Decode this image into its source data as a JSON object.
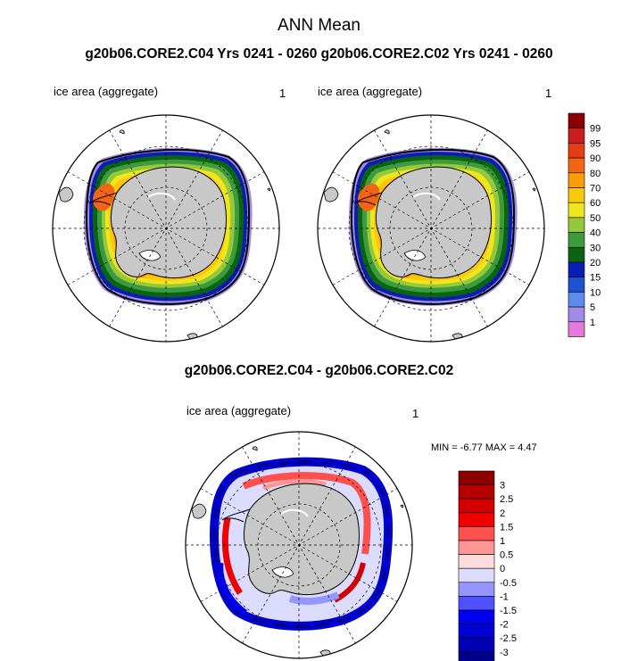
{
  "header": {
    "title": "ANN Mean",
    "subtitle": "g20b06.CORE2.C04  Yrs 0241 - 0260 g20b06.CORE2.C02  Yrs 0241 - 0260",
    "diff_title": "g20b06.CORE2.C04 - g20b06.CORE2.C02"
  },
  "panels": {
    "left": {
      "label": "ice area  (aggregate)",
      "units": "1"
    },
    "right": {
      "label": "ice area  (aggregate)",
      "units": "1"
    },
    "diff": {
      "label": "ice area  (aggregate)",
      "units": "1",
      "minmax": "MIN =  -6.77 MAX =   4.47"
    }
  },
  "colorbar_main": {
    "labels": [
      "99",
      "95",
      "90",
      "80",
      "70",
      "60",
      "50",
      "40",
      "30",
      "20",
      "15",
      "10",
      "5",
      "1"
    ],
    "colors": [
      "#8b0000",
      "#c81e1e",
      "#e53c14",
      "#f46414",
      "#f89c0c",
      "#fbc80a",
      "#f0e61e",
      "#96c83c",
      "#3c9b3c",
      "#0a6414",
      "#0a1eb4",
      "#1e50d2",
      "#5a8cf0",
      "#a08ce6",
      "#e678dc"
    ]
  },
  "colorbar_diff": {
    "labels": [
      "3",
      "2.5",
      "2",
      "1.5",
      "1",
      "0.5",
      "0",
      "-0.5",
      "-1",
      "-1.5",
      "-2",
      "-2.5",
      "-3"
    ],
    "colors": [
      "#8c0000",
      "#b40000",
      "#d20000",
      "#f00000",
      "#ff5050",
      "#ff9696",
      "#ffdcdc",
      "#dcdcff",
      "#9696ff",
      "#5050ff",
      "#0000f0",
      "#0000d2",
      "#0000b4",
      "#00008c"
    ]
  }
}
